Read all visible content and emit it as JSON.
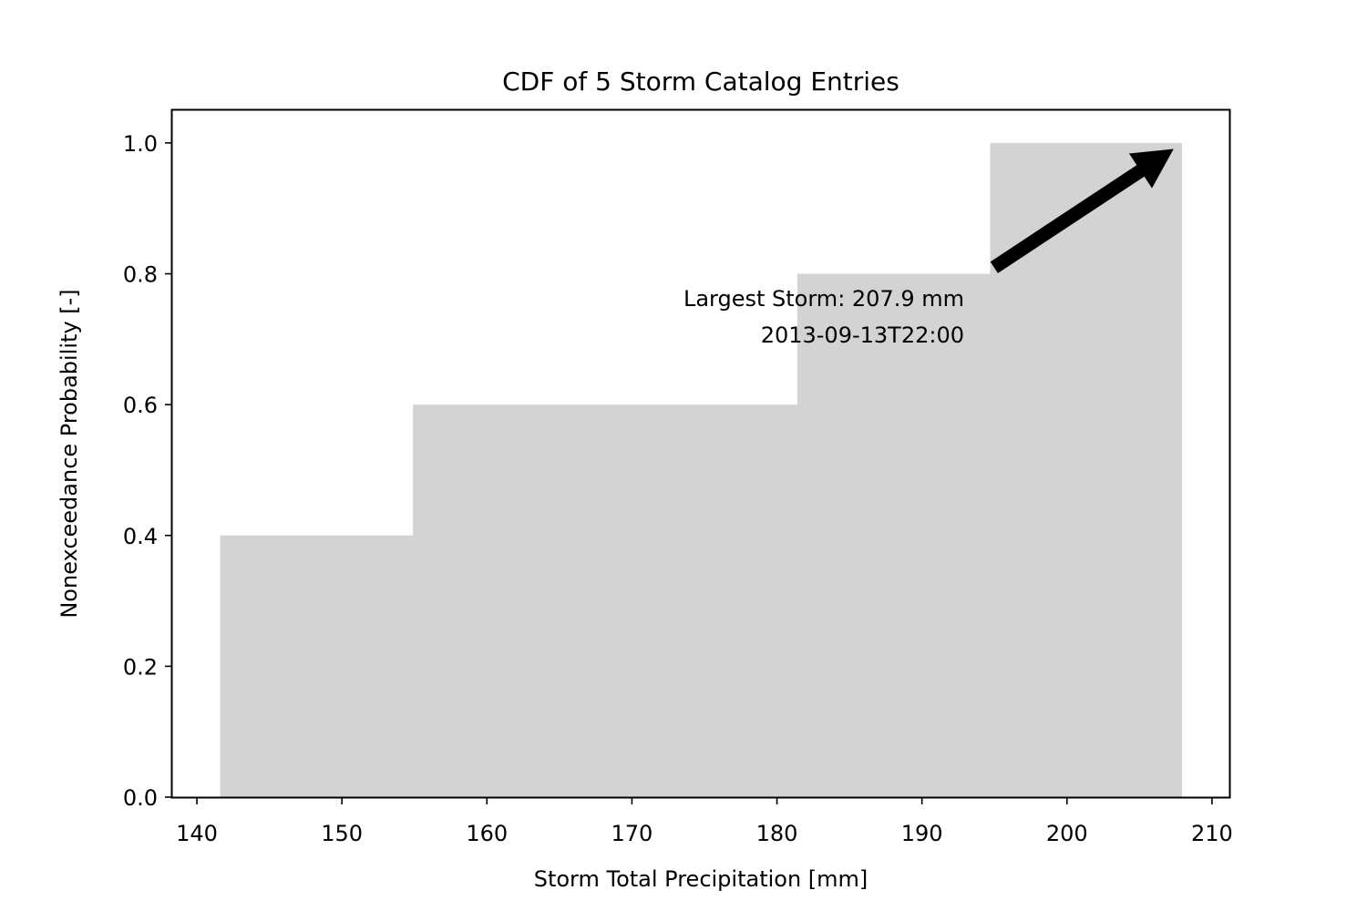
{
  "chart_data": {
    "type": "bar",
    "title": "CDF of 5 Storm Catalog Entries",
    "xlabel": "Storm Total Precipitation [mm]",
    "ylabel": "Nonexceedance Probability [-]",
    "xlim": [
      138.3,
      211.2
    ],
    "ylim": [
      0.0,
      1.05
    ],
    "xticks": [
      140,
      150,
      160,
      170,
      180,
      190,
      200,
      210
    ],
    "yticks": [
      0.0,
      0.2,
      0.4,
      0.6,
      0.8,
      1.0
    ],
    "ytick_labels": [
      "0.0",
      "0.2",
      "0.4",
      "0.6",
      "0.8",
      "1.0"
    ],
    "bars": [
      {
        "x0": 141.6,
        "x1": 154.9,
        "value": 0.4
      },
      {
        "x0": 154.9,
        "x1": 168.1,
        "value": 0.6
      },
      {
        "x0": 168.1,
        "x1": 181.4,
        "value": 0.6
      },
      {
        "x0": 181.4,
        "x1": 194.7,
        "value": 0.8
      },
      {
        "x0": 194.7,
        "x1": 207.9,
        "value": 1.0
      }
    ],
    "bar_color": "#d3d3d3",
    "grid": false,
    "annotation": {
      "lines": [
        "Largest Storm: 207.9 mm",
        "2013-09-13T22:00"
      ],
      "arrow_from": [
        195.0,
        0.81
      ],
      "arrow_to": [
        207.3,
        0.99
      ]
    }
  }
}
